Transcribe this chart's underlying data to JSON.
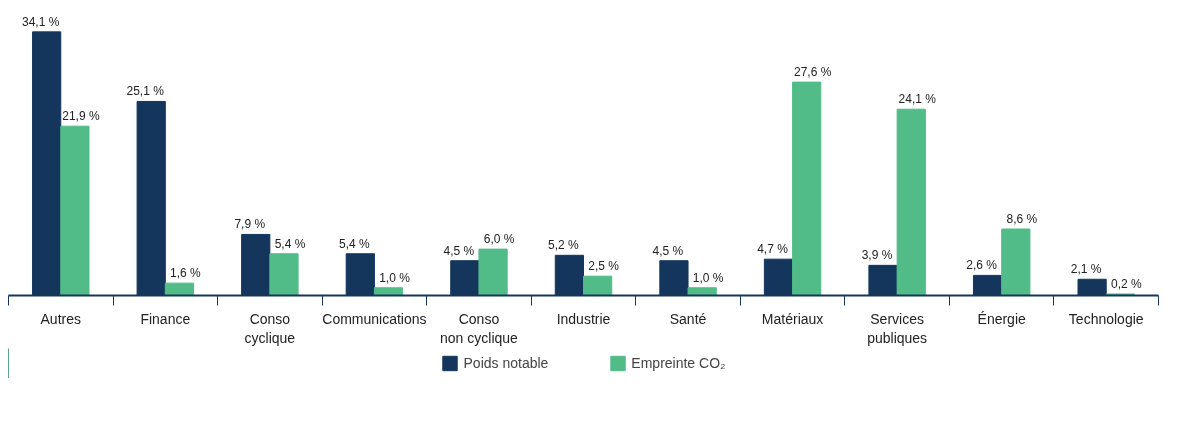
{
  "chart_data": {
    "type": "bar",
    "categories": [
      "Autres",
      "Finance",
      "Conso\ncyclique",
      "Communications",
      "Conso\nnon cyclique",
      "Industrie",
      "Santé",
      "Matériaux",
      "Services\npubliques",
      "Énergie",
      "Technologie"
    ],
    "series": [
      {
        "name": "Poids notable",
        "color": "#14365d",
        "values": [
          34.1,
          25.1,
          7.9,
          5.4,
          4.5,
          5.2,
          4.5,
          4.7,
          3.9,
          2.6,
          2.1
        ],
        "value_labels": [
          "34,1 %",
          "25,1 %",
          "7,9 %",
          "5,4 %",
          "4,5 %",
          "5,2 %",
          "4,5 %",
          "4,7 %",
          "3,9 %",
          "2,6 %",
          "2,1 %"
        ]
      },
      {
        "name": "Empreinte CO₂",
        "color": "#52bc89",
        "values": [
          21.9,
          1.6,
          5.4,
          1.0,
          6.0,
          2.5,
          1.0,
          27.6,
          24.1,
          8.6,
          0.2
        ],
        "value_labels": [
          "21,9 %",
          "1,6 %",
          "5,4 %",
          "1,0 %",
          "6,0 %",
          "2,5 %",
          "1,0 %",
          "27,6 %",
          "24,1 %",
          "8,6 %",
          "0,2 %"
        ]
      }
    ],
    "legend": "bottom"
  }
}
